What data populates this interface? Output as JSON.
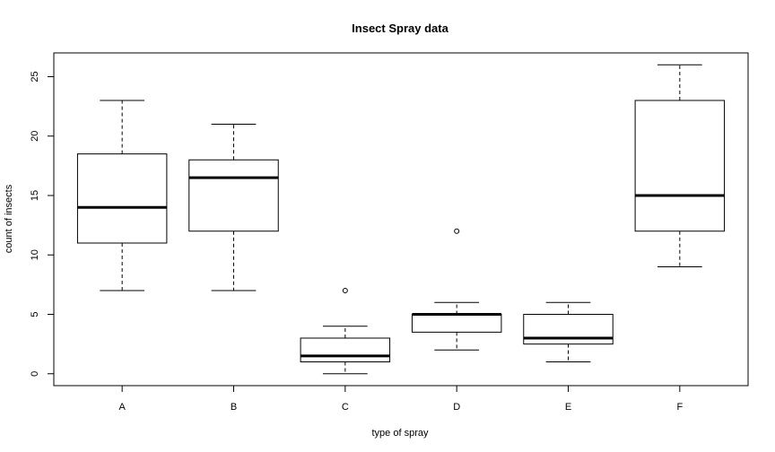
{
  "chart_data": {
    "type": "boxplot",
    "title": "Insect Spray data",
    "xlabel": "type of spray",
    "ylabel": "count of insects",
    "ylim": [
      -1,
      27
    ],
    "yticks": [
      0,
      5,
      10,
      15,
      20,
      25
    ],
    "grid": false,
    "categories": [
      "A",
      "B",
      "C",
      "D",
      "E",
      "F"
    ],
    "boxes": [
      {
        "name": "A",
        "whisker_low": 7,
        "q1": 11,
        "median": 14,
        "q3": 18.5,
        "whisker_high": 23,
        "outliers": []
      },
      {
        "name": "B",
        "whisker_low": 7,
        "q1": 12,
        "median": 16.5,
        "q3": 18,
        "whisker_high": 21,
        "outliers": []
      },
      {
        "name": "C",
        "whisker_low": 0,
        "q1": 1,
        "median": 1.5,
        "q3": 3,
        "whisker_high": 4,
        "outliers": [
          7
        ]
      },
      {
        "name": "D",
        "whisker_low": 2,
        "q1": 3.5,
        "median": 5,
        "q3": 5,
        "whisker_high": 6,
        "outliers": [
          12
        ]
      },
      {
        "name": "E",
        "whisker_low": 1,
        "q1": 2.5,
        "median": 3,
        "q3": 5,
        "whisker_high": 6,
        "outliers": []
      },
      {
        "name": "F",
        "whisker_low": 9,
        "q1": 12,
        "median": 15,
        "q3": 23,
        "whisker_high": 26,
        "outliers": []
      }
    ]
  }
}
